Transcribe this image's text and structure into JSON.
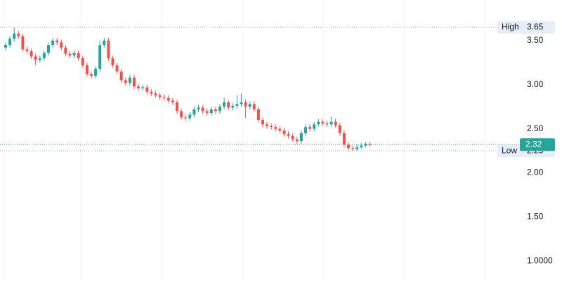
{
  "chart_data": {
    "type": "candlestick",
    "open": [
      3.42,
      3.45,
      3.52,
      3.58,
      3.55,
      3.4,
      3.38,
      3.32,
      3.28,
      3.3,
      3.36,
      3.45,
      3.5,
      3.48,
      3.42,
      3.35,
      3.33,
      3.36,
      3.3,
      3.22,
      3.12,
      3.1,
      3.18,
      3.45,
      3.5,
      3.3,
      3.22,
      3.15,
      3.05,
      3.02,
      3.08,
      2.98,
      2.96,
      2.97,
      2.92,
      2.9,
      2.88,
      2.86,
      2.85,
      2.82,
      2.8,
      2.7,
      2.63,
      2.62,
      2.66,
      2.72,
      2.74,
      2.7,
      2.68,
      2.72,
      2.7,
      2.75,
      2.8,
      2.74,
      2.76,
      2.78,
      2.8,
      2.75,
      2.78,
      2.72,
      2.6,
      2.55,
      2.53,
      2.52,
      2.5,
      2.48,
      2.44,
      2.42,
      2.38,
      2.36,
      2.45,
      2.52,
      2.5,
      2.55,
      2.58,
      2.56,
      2.55,
      2.58,
      2.54,
      2.45,
      2.32,
      2.28,
      2.27,
      2.29,
      2.31,
      2.33
    ],
    "high": [
      3.48,
      3.55,
      3.65,
      3.61,
      3.58,
      3.43,
      3.41,
      3.35,
      3.33,
      3.39,
      3.48,
      3.53,
      3.53,
      3.51,
      3.45,
      3.38,
      3.39,
      3.39,
      3.33,
      3.25,
      3.15,
      3.21,
      3.5,
      3.53,
      3.53,
      3.33,
      3.25,
      3.18,
      3.08,
      3.11,
      3.11,
      3.01,
      3.0,
      3.0,
      2.95,
      2.93,
      2.91,
      2.89,
      2.88,
      2.85,
      2.83,
      2.73,
      2.66,
      2.69,
      2.75,
      2.77,
      2.77,
      2.73,
      2.75,
      2.75,
      2.78,
      2.85,
      2.83,
      2.79,
      2.88,
      2.9,
      2.83,
      2.81,
      2.81,
      2.75,
      2.63,
      2.58,
      2.56,
      2.55,
      2.53,
      2.51,
      2.47,
      2.45,
      2.41,
      2.48,
      2.55,
      2.55,
      2.58,
      2.61,
      2.61,
      2.59,
      2.64,
      2.61,
      2.57,
      2.48,
      2.35,
      2.31,
      2.32,
      2.34,
      2.35,
      2.35
    ],
    "low": [
      3.39,
      3.42,
      3.49,
      3.52,
      3.37,
      3.35,
      3.29,
      3.22,
      3.25,
      3.27,
      3.33,
      3.42,
      3.45,
      3.39,
      3.32,
      3.3,
      3.3,
      3.27,
      3.19,
      3.09,
      3.07,
      3.07,
      3.15,
      3.42,
      3.27,
      3.19,
      3.12,
      3.02,
      2.99,
      2.99,
      2.95,
      2.93,
      2.93,
      2.89,
      2.87,
      2.85,
      2.83,
      2.82,
      2.79,
      2.77,
      2.67,
      2.6,
      2.59,
      2.59,
      2.63,
      2.69,
      2.67,
      2.65,
      2.65,
      2.67,
      2.67,
      2.72,
      2.71,
      2.71,
      2.73,
      2.75,
      2.62,
      2.72,
      2.69,
      2.57,
      2.52,
      2.5,
      2.49,
      2.47,
      2.45,
      2.41,
      2.39,
      2.35,
      2.33,
      2.33,
      2.42,
      2.47,
      2.47,
      2.52,
      2.53,
      2.52,
      2.52,
      2.51,
      2.42,
      2.29,
      2.25,
      2.25,
      2.25,
      2.27,
      2.29,
      2.3
    ],
    "close": [
      3.45,
      3.52,
      3.58,
      3.55,
      3.4,
      3.38,
      3.32,
      3.28,
      3.3,
      3.36,
      3.45,
      3.5,
      3.48,
      3.42,
      3.35,
      3.33,
      3.36,
      3.3,
      3.22,
      3.12,
      3.1,
      3.18,
      3.45,
      3.5,
      3.3,
      3.22,
      3.15,
      3.05,
      3.02,
      3.08,
      2.98,
      2.96,
      2.97,
      2.92,
      2.9,
      2.88,
      2.86,
      2.85,
      2.82,
      2.8,
      2.7,
      2.63,
      2.62,
      2.66,
      2.72,
      2.74,
      2.7,
      2.68,
      2.72,
      2.7,
      2.75,
      2.8,
      2.74,
      2.76,
      2.78,
      2.8,
      2.75,
      2.78,
      2.72,
      2.6,
      2.55,
      2.53,
      2.52,
      2.5,
      2.48,
      2.44,
      2.42,
      2.38,
      2.36,
      2.45,
      2.52,
      2.5,
      2.55,
      2.58,
      2.56,
      2.55,
      2.58,
      2.54,
      2.45,
      2.32,
      2.28,
      2.27,
      2.29,
      2.31,
      2.33,
      2.32
    ],
    "up_color": "#26a69a",
    "down_color": "#ef5350",
    "ylim": [
      0.78,
      3.96
    ],
    "yticks": [
      {
        "value": 1,
        "label": "1.0000"
      },
      {
        "value": 1.5,
        "label": "1.50"
      },
      {
        "value": 2,
        "label": "2.00"
      },
      {
        "value": 2.5,
        "label": "2.50"
      },
      {
        "value": 3,
        "label": "3.00"
      },
      {
        "value": 3.5,
        "label": "3.50"
      }
    ],
    "high_line": {
      "label": "High",
      "value": 3.65
    },
    "low_line": {
      "label": "Low",
      "value": 2.25
    },
    "last_price": {
      "value": 2.32,
      "color": "#26a69a"
    }
  }
}
